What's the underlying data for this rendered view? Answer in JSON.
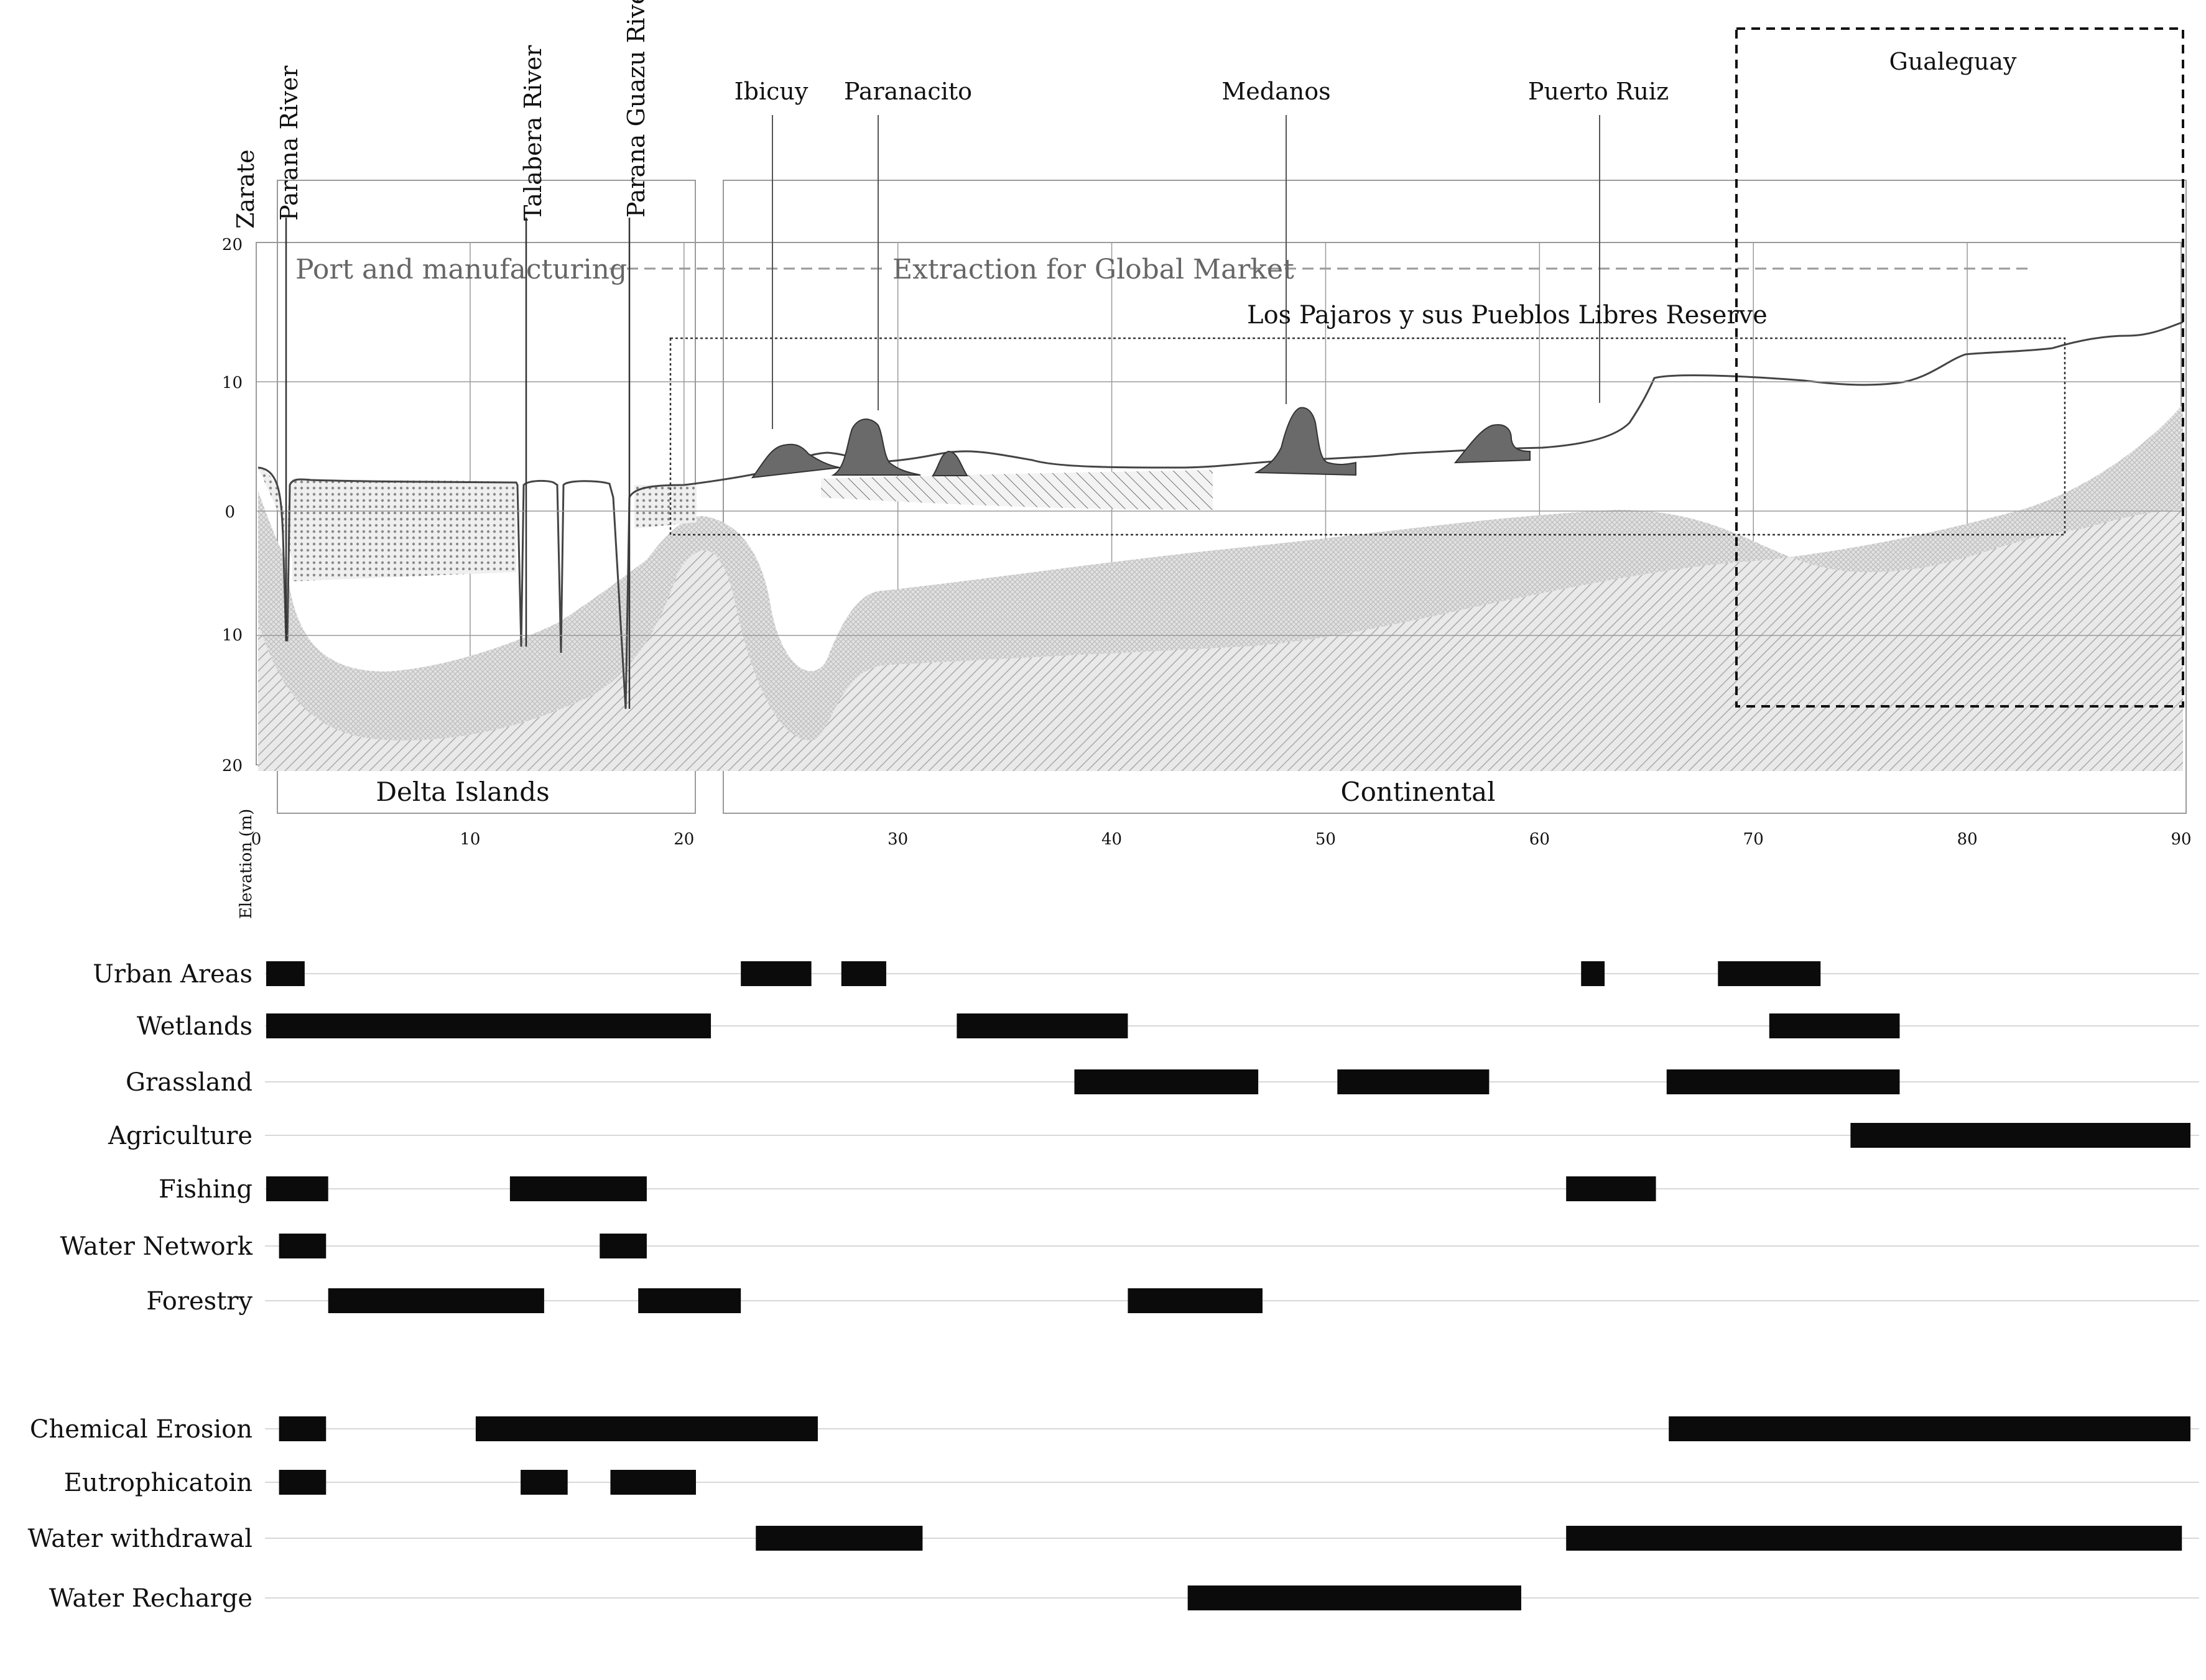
{
  "profile": {
    "x_axis": {
      "min": 0,
      "max": 90,
      "ticks": [
        "0",
        "10",
        "20",
        "30",
        "40",
        "50",
        "60",
        "70",
        "80",
        "90"
      ]
    },
    "elevation_axis": {
      "label": "Elevation (m)",
      "ticks": [
        "20",
        "10",
        "0",
        "10",
        "20"
      ]
    },
    "places": [
      {
        "name": "Zarate",
        "km": 0,
        "orientation": "vertical"
      },
      {
        "name": "Parana River",
        "km": 1.5,
        "orientation": "vertical"
      },
      {
        "name": "Talabera River",
        "km": 12.8,
        "orientation": "vertical"
      },
      {
        "name": "Parana Guazu River",
        "km": 17.6,
        "orientation": "vertical"
      },
      {
        "name": "Ibicuy",
        "km": 24.5,
        "orientation": "horizontal"
      },
      {
        "name": "Paranacito",
        "km": 29.5,
        "orientation": "horizontal"
      },
      {
        "name": "Medanos",
        "km": 48.5,
        "orientation": "horizontal"
      },
      {
        "name": "Puerto Ruiz",
        "km": 63,
        "orientation": "horizontal"
      }
    ],
    "zones": {
      "port": "Port and manufacturing",
      "extraction": "Extraction for Global Market",
      "reserve": "Los Pajaros y sus Pueblos Libres Reserve",
      "highlight": "Gualeguay"
    },
    "regions": {
      "delta": "Delta Islands",
      "continental": "Continental"
    }
  },
  "land_use": {
    "x_range": [
      0,
      90
    ],
    "rows": [
      {
        "label": "Urban Areas",
        "segments": [
          [
            0,
            1.8
          ],
          [
            22.2,
            25.5
          ],
          [
            26.9,
            29
          ],
          [
            61.5,
            62.6
          ],
          [
            67.9,
            72.7
          ]
        ]
      },
      {
        "label": "Wetlands",
        "segments": [
          [
            0,
            20.8
          ],
          [
            32.3,
            40.3
          ],
          [
            70.3,
            76.4
          ]
        ]
      },
      {
        "label": "Grassland",
        "segments": [
          [
            37.8,
            46.4
          ],
          [
            50.1,
            57.2
          ],
          [
            65.5,
            76.4
          ]
        ]
      },
      {
        "label": "Agriculture",
        "segments": [
          [
            74.1,
            90
          ]
        ]
      },
      {
        "label": "Fishing",
        "segments": [
          [
            0,
            2.9
          ],
          [
            11.4,
            17.8
          ],
          [
            60.8,
            65
          ]
        ]
      },
      {
        "label": "Water Network",
        "segments": [
          [
            0.6,
            2.8
          ],
          [
            15.6,
            17.8
          ]
        ]
      },
      {
        "label": "Forestry",
        "segments": [
          [
            2.9,
            13
          ],
          [
            17.4,
            22.2
          ],
          [
            40.3,
            46.6
          ]
        ]
      }
    ]
  },
  "impacts": {
    "x_range": [
      0,
      90
    ],
    "rows": [
      {
        "label": "Chemical Erosion",
        "segments": [
          [
            0.6,
            2.8
          ],
          [
            9.8,
            25.8
          ],
          [
            65.6,
            90
          ]
        ]
      },
      {
        "label": "Eutrophicatoin",
        "segments": [
          [
            0.6,
            2.8
          ],
          [
            11.9,
            14.1
          ],
          [
            16.1,
            20.1
          ]
        ]
      },
      {
        "label": "Water withdrawal",
        "segments": [
          [
            22.9,
            30.7
          ],
          [
            60.8,
            89.6
          ]
        ]
      },
      {
        "label": "Water Recharge",
        "segments": [
          [
            43.1,
            58.7
          ]
        ]
      }
    ]
  },
  "colors": {
    "bar": "#0b0b0b",
    "grid": "#9a9a9a",
    "rowline": "#d8d8d8",
    "soil_light": "#d9d9d9",
    "soil_mid": "#c2c2c2",
    "dune": "#6a6a6a",
    "zone_text": "#666666"
  }
}
